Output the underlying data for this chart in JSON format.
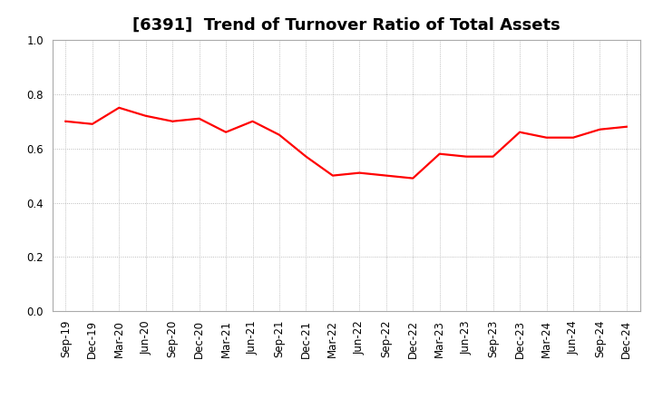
{
  "title": "[6391]  Trend of Turnover Ratio of Total Assets",
  "line_color": "#FF0000",
  "background_color": "#FFFFFF",
  "grid_color": "#AAAAAA",
  "ylim": [
    0.0,
    1.0
  ],
  "yticks": [
    0.0,
    0.2,
    0.4,
    0.6,
    0.8,
    1.0
  ],
  "labels": [
    "Sep-19",
    "Dec-19",
    "Mar-20",
    "Jun-20",
    "Sep-20",
    "Dec-20",
    "Mar-21",
    "Jun-21",
    "Sep-21",
    "Dec-21",
    "Mar-22",
    "Jun-22",
    "Sep-22",
    "Dec-22",
    "Mar-23",
    "Jun-23",
    "Sep-23",
    "Dec-23",
    "Mar-24",
    "Jun-24",
    "Sep-24",
    "Dec-24"
  ],
  "values": [
    0.7,
    0.69,
    0.75,
    0.72,
    0.7,
    0.71,
    0.66,
    0.7,
    0.65,
    0.57,
    0.5,
    0.51,
    0.5,
    0.49,
    0.58,
    0.57,
    0.57,
    0.66,
    0.64,
    0.64,
    0.67,
    0.68
  ],
  "title_fontsize": 13,
  "tick_fontsize": 8.5,
  "line_width": 1.6
}
